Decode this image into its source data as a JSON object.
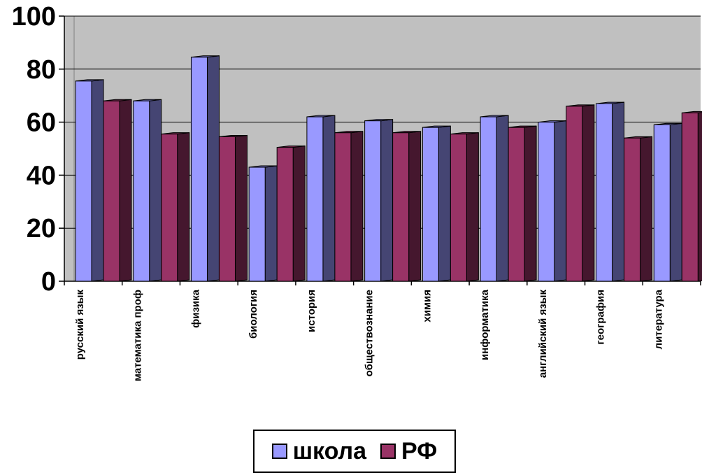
{
  "chart_data": {
    "type": "bar",
    "title": "",
    "xlabel": "",
    "ylabel": "",
    "ylim": [
      0,
      100
    ],
    "yticks": [
      0,
      20,
      40,
      60,
      80,
      100
    ],
    "grid": true,
    "legend_position": "bottom",
    "categories": [
      "русский язык",
      "математика проф",
      "физика",
      "биология",
      "история",
      "обществознание",
      "химия",
      "информатика",
      "английский язык",
      "география",
      "литература"
    ],
    "series": [
      {
        "name": "школа",
        "color": "#9999ff",
        "values": [
          75.5,
          68,
          84.5,
          43,
          62,
          60.5,
          58,
          62,
          60,
          67,
          59
        ]
      },
      {
        "name": "РФ",
        "color": "#993366",
        "values": [
          68,
          55.5,
          54.5,
          50.5,
          56,
          56,
          55.5,
          58,
          66,
          54,
          63.5
        ]
      }
    ],
    "colors": {
      "plot_area": "#c0c0c0",
      "gridline": "#000000"
    }
  }
}
